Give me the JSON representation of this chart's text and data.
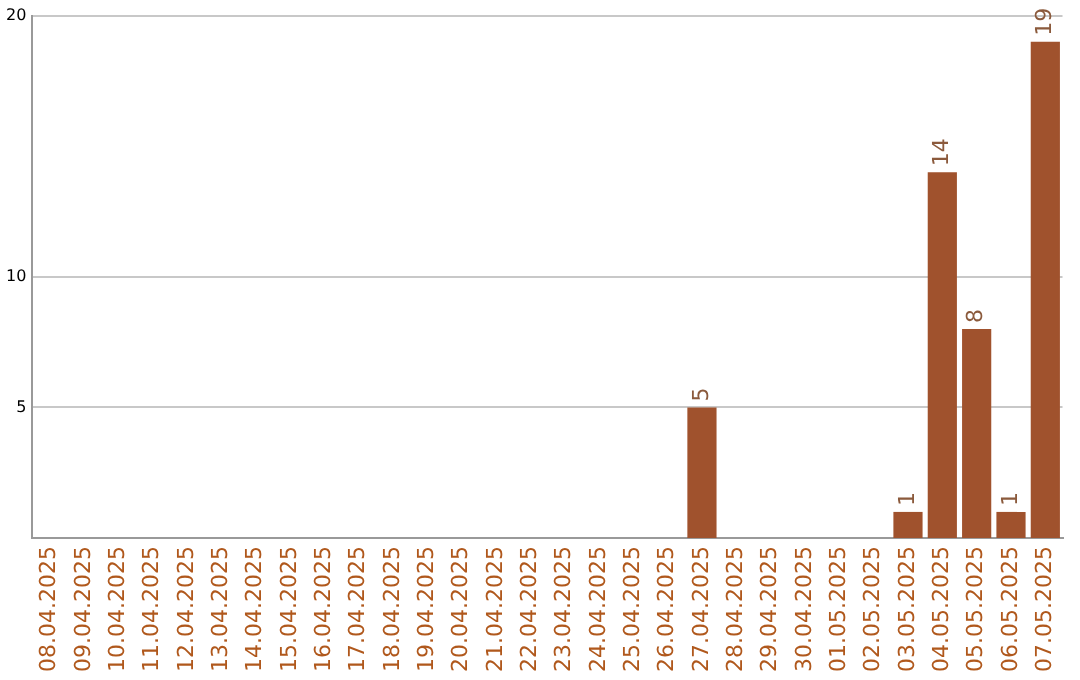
{
  "chart_data": {
    "type": "bar",
    "categories": [
      "08.04.2025",
      "09.04.2025",
      "10.04.2025",
      "11.04.2025",
      "12.04.2025",
      "13.04.2025",
      "14.04.2025",
      "15.04.2025",
      "16.04.2025",
      "17.04.2025",
      "18.04.2025",
      "19.04.2025",
      "20.04.2025",
      "21.04.2025",
      "22.04.2025",
      "23.04.2025",
      "24.04.2025",
      "25.04.2025",
      "26.04.2025",
      "27.04.2025",
      "28.04.2025",
      "29.04.2025",
      "30.04.2025",
      "01.05.2025",
      "02.05.2025",
      "03.05.2025",
      "04.05.2025",
      "05.05.2025",
      "06.05.2025",
      "07.05.2025"
    ],
    "values": [
      0,
      0,
      0,
      0,
      0,
      0,
      0,
      0,
      0,
      0,
      0,
      0,
      0,
      0,
      0,
      0,
      0,
      0,
      0,
      5,
      0,
      0,
      0,
      0,
      0,
      1,
      14,
      8,
      1,
      19
    ],
    "value_labels": [
      null,
      null,
      null,
      null,
      null,
      null,
      null,
      null,
      null,
      null,
      null,
      null,
      null,
      null,
      null,
      null,
      null,
      null,
      null,
      "5",
      null,
      null,
      null,
      null,
      null,
      "1",
      "14",
      "8",
      "1",
      "19"
    ],
    "color": "#a0522d",
    "ylim": [
      0,
      20
    ],
    "yticks": [
      5,
      10,
      20
    ],
    "grid": "y",
    "legend": false
  }
}
